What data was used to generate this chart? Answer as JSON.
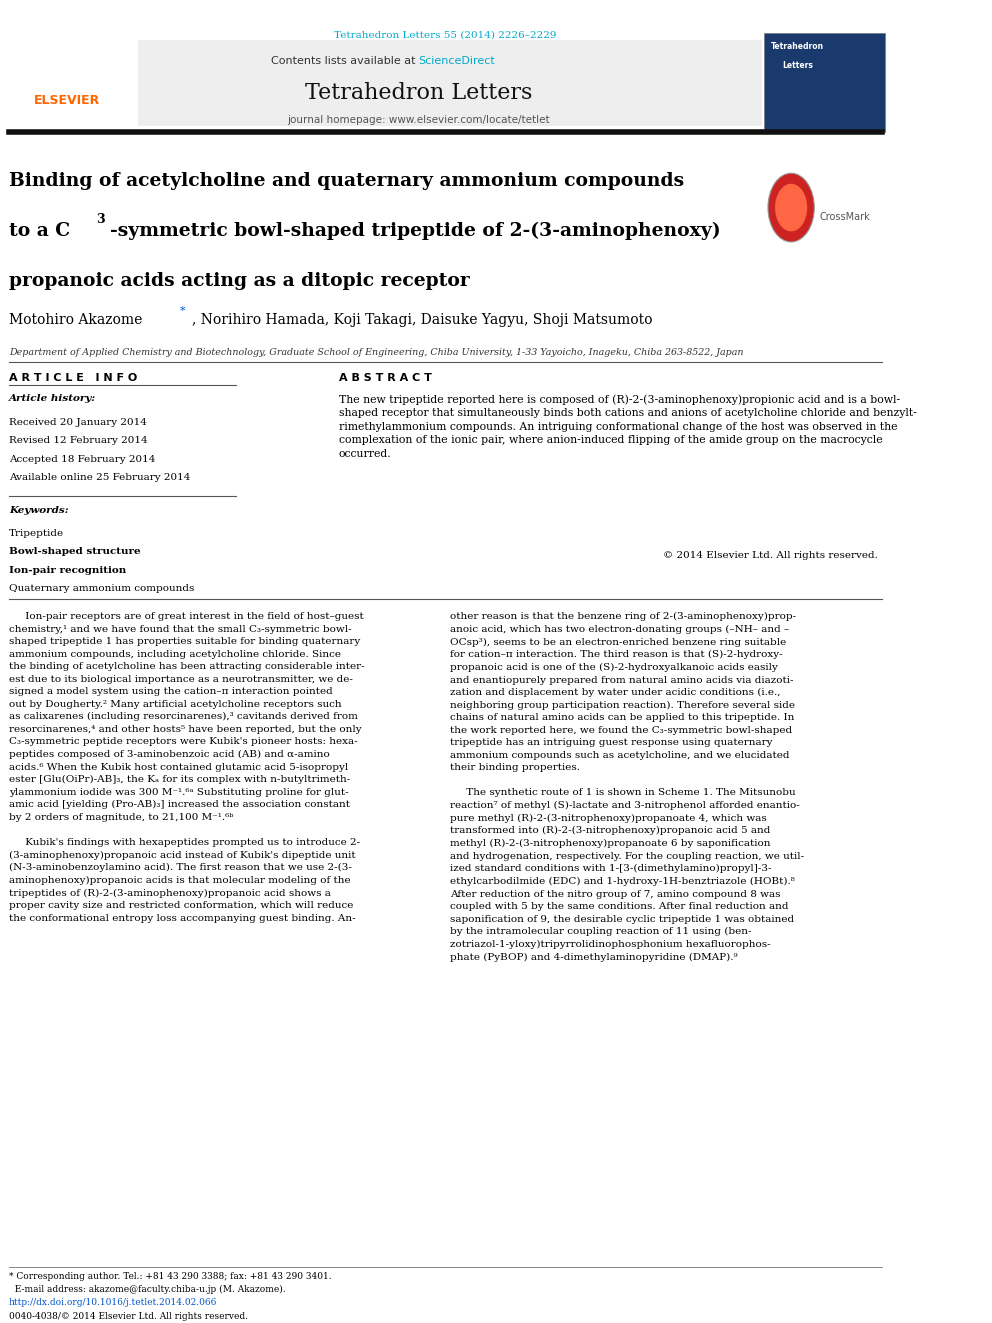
{
  "page_width": 9.92,
  "page_height": 13.23,
  "bg_color": "#ffffff",
  "header_doi": "Tetrahedron Letters 55 (2014) 2226–2229",
  "header_doi_color": "#00aacc",
  "journal_name": "Tetrahedron Letters",
  "journal_homepage": "journal homepage: www.elsevier.com/locate/tetlet",
  "contents_text": "Contents lists available at ",
  "science_direct": "ScienceDirect",
  "science_direct_color": "#00aacc",
  "header_bar_color": "#1a1a1a",
  "elsevier_color": "#ff6600",
  "title_line1": "Binding of acetylcholine and quaternary ammonium compounds",
  "title_line2": "to a C",
  "title_line2b": "3",
  "title_line2c": "-symmetric bowl-shaped tripeptide of 2-(3-aminophenoxy)",
  "title_line3": "propanoic acids acting as a ditopic receptor",
  "title_color": "#000000",
  "authors": "Motohiro Akazome *, Norihiro Hamada, Koji Takagi, Daisuke Yagyu, Shoji Matsumoto",
  "affiliation": "Department of Applied Chemistry and Biotechnology, Graduate School of Engineering, Chiba University, 1-33 Yayoicho, Inageku, Chiba 263-8522, Japan",
  "article_info_label": "A R T I C L E   I N F O",
  "abstract_label": "A B S T R A C T",
  "article_history_label": "Article history:",
  "received": "Received 20 January 2014",
  "revised": "Revised 12 February 2014",
  "accepted": "Accepted 18 February 2014",
  "available": "Available online 25 February 2014",
  "keywords_label": "Keywords:",
  "keyword1": "Tripeptide",
  "keyword2": "Bowl-shaped structure",
  "keyword3": "Ion-pair recognition",
  "keyword4": "Quaternary ammonium compounds",
  "abstract_text": "The new tripeptide reported here is composed of (R)-2-(3-aminophenoxy)propionic acid and is a bowl-shaped receptor that simultaneously binds both cations and anions of acetylcholine chloride and benzylt-rimethylammonium compounds. An intriguing conformational change of the host was observed in the complexation of the ionic pair, where anion-induced flipping of the amide group on the macrocycle occurred.",
  "copyright": "© 2014 Elsevier Ltd. All rights reserved.",
  "footer_doi": "http://dx.doi.org/10.1016/j.tetlet.2014.02.066",
  "footer_issn": "0040-4038/© 2014 Elsevier Ltd. All rights reserved.",
  "footer_star": "* Corresponding author. Tel.: +81 43 290 3388; fax: +81 43 290 3401.",
  "footer_email": "  E-mail address: akazome@faculty.chiba-u.jp (M. Akazome)."
}
